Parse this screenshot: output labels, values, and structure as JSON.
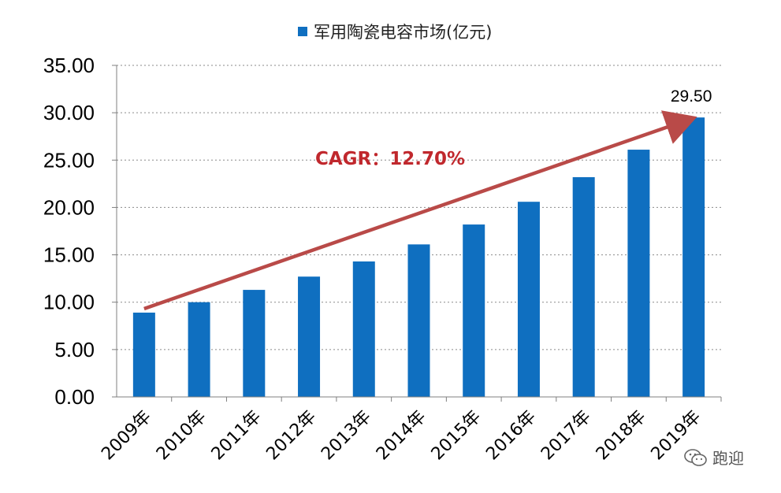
{
  "chart_data": {
    "type": "bar",
    "legend": "军用陶瓷电容市场(亿元)",
    "categories": [
      "2009年",
      "2010年",
      "2011年",
      "2012年",
      "2013年",
      "2014年",
      "2015年",
      "2016年",
      "2017年",
      "2018年",
      "2019年"
    ],
    "series": [
      {
        "name": "军用陶瓷电容市场(亿元)",
        "values": [
          8.9,
          10.0,
          11.3,
          12.7,
          14.3,
          16.1,
          18.2,
          20.6,
          23.2,
          26.1,
          29.5
        ]
      }
    ],
    "y_ticks": [
      "0.00",
      "5.00",
      "10.00",
      "15.00",
      "20.00",
      "25.00",
      "30.00",
      "35.00"
    ],
    "ylim": [
      0,
      35
    ],
    "labeled_value": {
      "index": 10,
      "text": "29.50"
    },
    "annotation": "CAGR：12.70%",
    "grid": "horizontal-dotted",
    "legend_position": "top",
    "bar_color": "#0f6fc0",
    "arrow_color": "#b94a48",
    "annotation_color": "#c0282d"
  },
  "watermark": {
    "text": "跑迎",
    "icon": "wechat-icon"
  }
}
